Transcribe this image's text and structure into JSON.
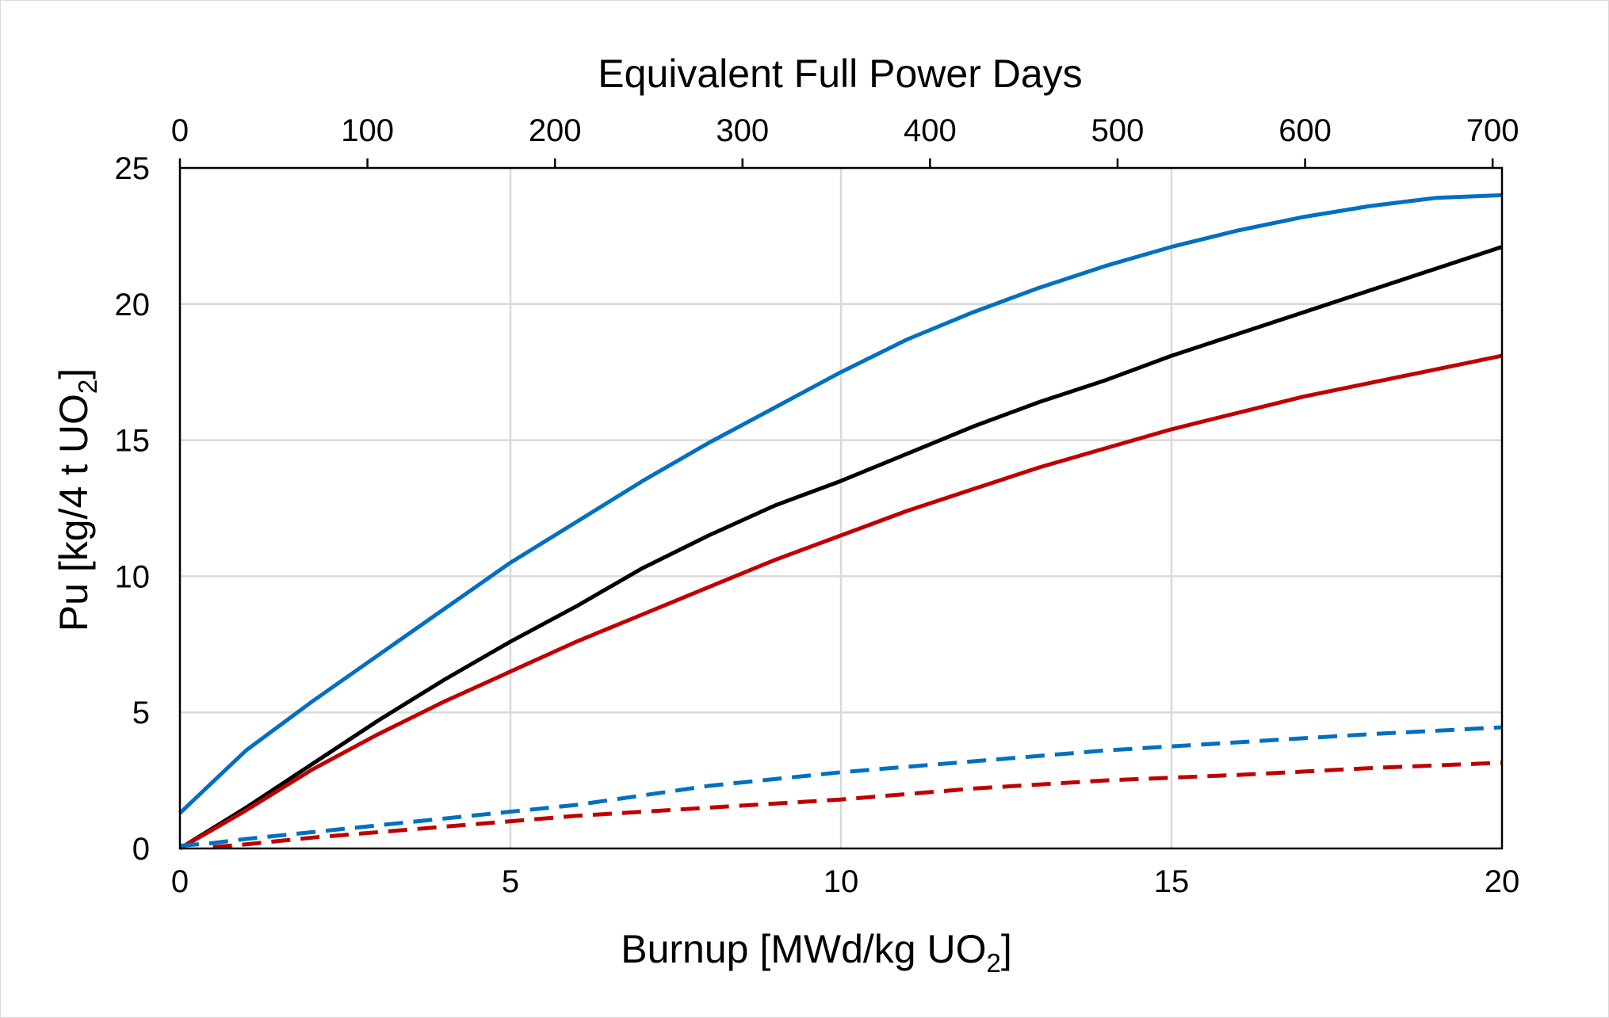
{
  "chart_data": {
    "type": "line",
    "xlabel": "Burnup [MWd/kg UO",
    "xlabel_sub": "2",
    "xlabel_end": "]",
    "ylabel": "Pu [kg/4 t UO",
    "ylabel_sub": "2",
    "ylabel_end": "]",
    "x2label": "Equivalent Full Power Days",
    "xlim": [
      0,
      20
    ],
    "ylim": [
      0,
      25
    ],
    "x2lim": [
      0,
      705
    ],
    "xticks": [
      "0",
      "5",
      "10",
      "15",
      "20"
    ],
    "yticks": [
      "0",
      "5",
      "10",
      "15",
      "20",
      "25"
    ],
    "x2ticks": [
      "0",
      "100",
      "200",
      "300",
      "400",
      "500",
      "600",
      "700"
    ],
    "grid": true,
    "legend": "none",
    "series": [
      {
        "color": "#0070c0",
        "dash": "solid",
        "x": [
          0,
          1,
          2,
          3,
          4,
          5,
          6,
          7,
          8,
          9,
          10,
          11,
          12,
          13,
          14,
          15,
          16,
          17,
          18,
          19,
          20
        ],
        "y": [
          1.3,
          3.6,
          5.4,
          7.1,
          8.8,
          10.5,
          12.0,
          13.5,
          14.9,
          16.2,
          17.5,
          18.7,
          19.7,
          20.6,
          21.4,
          22.1,
          22.7,
          23.2,
          23.6,
          23.9,
          24.0
        ]
      },
      {
        "color": "#000000",
        "dash": "solid",
        "x": [
          0,
          1,
          2,
          3,
          4,
          5,
          6,
          7,
          8,
          9,
          10,
          11,
          12,
          13,
          14,
          15,
          16,
          17,
          18,
          19,
          20
        ],
        "y": [
          0.0,
          1.5,
          3.1,
          4.7,
          6.2,
          7.6,
          8.9,
          10.3,
          11.5,
          12.6,
          13.5,
          14.5,
          15.5,
          16.4,
          17.2,
          18.1,
          18.9,
          19.7,
          20.5,
          21.3,
          22.1
        ]
      },
      {
        "color": "#c00000",
        "dash": "solid",
        "x": [
          0,
          1,
          2,
          3,
          4,
          5,
          6,
          7,
          8,
          9,
          10,
          11,
          12,
          13,
          14,
          15,
          16,
          17,
          18,
          19,
          20
        ],
        "y": [
          0.0,
          1.4,
          2.9,
          4.2,
          5.4,
          6.5,
          7.6,
          8.6,
          9.6,
          10.6,
          11.5,
          12.4,
          13.2,
          14.0,
          14.7,
          15.4,
          16.0,
          16.6,
          17.1,
          17.6,
          18.1
        ]
      },
      {
        "color": "#0070c0",
        "dash": "dashed",
        "x": [
          0,
          0.5,
          1,
          2,
          4,
          6,
          8,
          10,
          12,
          14,
          16,
          18,
          20
        ],
        "y": [
          0.1,
          0.2,
          0.35,
          0.6,
          1.1,
          1.6,
          2.3,
          2.8,
          3.2,
          3.6,
          3.9,
          4.2,
          4.45
        ]
      },
      {
        "color": "#c00000",
        "dash": "dashed",
        "x": [
          0.5,
          1,
          2,
          4,
          6,
          8,
          10,
          12,
          14,
          16,
          18,
          20
        ],
        "y": [
          0.05,
          0.15,
          0.4,
          0.8,
          1.2,
          1.5,
          1.8,
          2.2,
          2.5,
          2.7,
          2.95,
          3.15
        ]
      }
    ]
  }
}
